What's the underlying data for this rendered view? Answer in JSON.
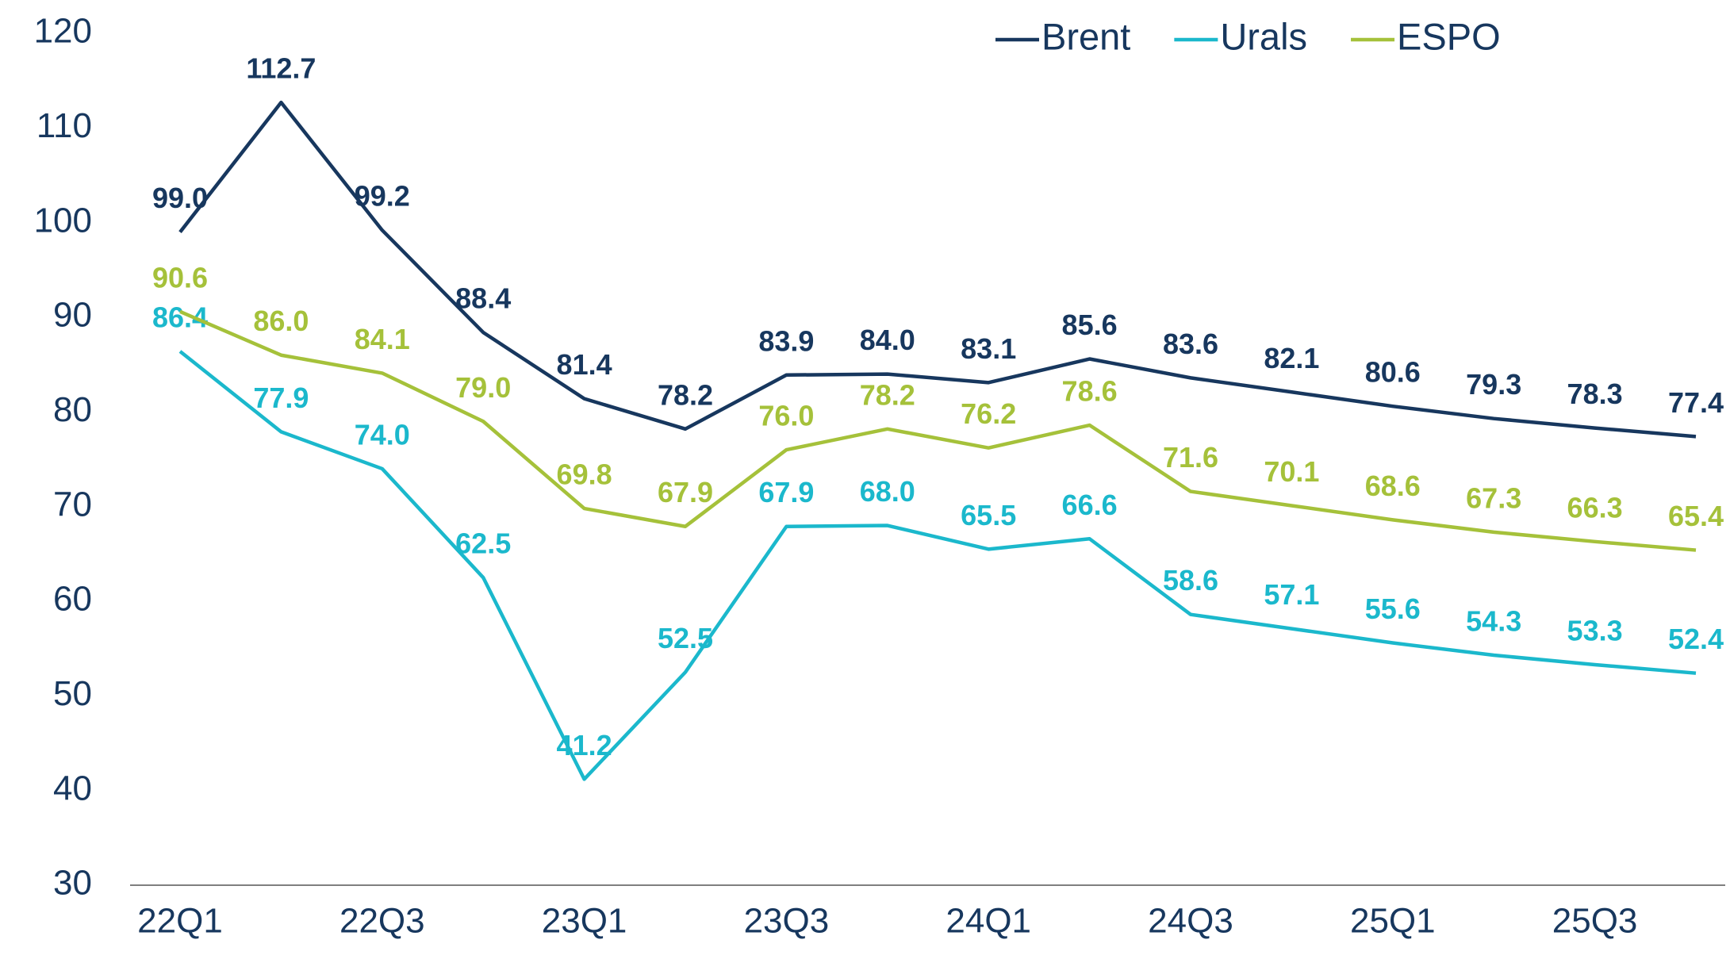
{
  "chart_data": {
    "type": "line",
    "categories": [
      "22Q1",
      null,
      "22Q3",
      null,
      "23Q1",
      null,
      "23Q3",
      null,
      "24Q1",
      null,
      "24Q3",
      null,
      "25Q1",
      null,
      "25Q3",
      null
    ],
    "series": [
      {
        "name": "Brent",
        "color": "#17375e",
        "values": [
          99.0,
          112.7,
          99.2,
          88.4,
          81.4,
          78.2,
          83.9,
          84.0,
          83.1,
          85.6,
          83.6,
          82.1,
          80.6,
          79.3,
          78.3,
          77.4
        ],
        "value_labels": [
          "99.0",
          "112.7",
          "99.2",
          "88.4",
          "81.4",
          "78.2",
          "83.9",
          "84.0",
          "83.1",
          "85.6",
          "83.6",
          "82.1",
          "80.6",
          "79.3",
          "78.3",
          "77.4"
        ]
      },
      {
        "name": "Urals",
        "color": "#1bb8cc",
        "values": [
          86.4,
          77.9,
          74.0,
          62.5,
          41.2,
          52.5,
          67.9,
          68.0,
          65.5,
          66.6,
          58.6,
          57.1,
          55.6,
          54.3,
          53.3,
          52.4
        ],
        "value_labels": [
          "86.4",
          "77.9",
          "74.0",
          "62.5",
          "41.2",
          "52.5",
          "67.9",
          "68.0",
          "65.5",
          "66.6",
          "58.6",
          "57.1",
          "55.6",
          "54.3",
          "53.3",
          "52.4"
        ]
      },
      {
        "name": "ESPO",
        "color": "#a5c13a",
        "values": [
          90.6,
          86.0,
          84.1,
          79.0,
          69.8,
          67.9,
          76.0,
          78.2,
          76.2,
          78.6,
          71.6,
          70.1,
          68.6,
          67.3,
          66.3,
          65.4
        ],
        "value_labels": [
          "90.6",
          "86.0",
          "84.1",
          "79.0",
          "69.8",
          "67.9",
          "76.0",
          "78.2",
          "76.2",
          "78.6",
          "71.6",
          "70.1",
          "68.6",
          "67.3",
          "66.3",
          "65.4"
        ]
      }
    ],
    "ylim": [
      30,
      120
    ],
    "yticks": [
      30,
      40,
      50,
      60,
      70,
      80,
      90,
      100,
      110,
      120
    ],
    "grid": false,
    "legend": "top-right"
  }
}
